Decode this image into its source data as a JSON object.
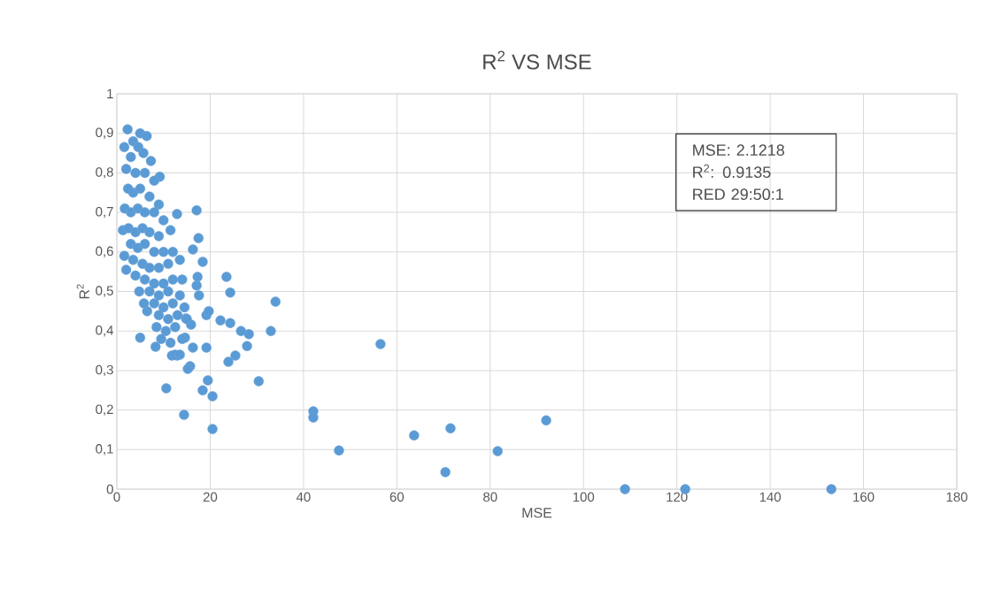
{
  "chart_data": {
    "type": "scatter",
    "title": "R$^{2}$ VS MSE",
    "xlabel": "MSE",
    "ylabel": "R$^{2}$",
    "annotations": [
      "MSE: 2.1218",
      "R$^{2}$:     0.9135",
      "RED   29:50:1"
    ],
    "series": [
      {
        "color": "#5b9bd5",
        "x": [
          153.1,
          121.8,
          108.9,
          92.0,
          81.6,
          71.5,
          70.4,
          63.7,
          47.6,
          42.1,
          42.1,
          56.5,
          34.0,
          33.0,
          30.4,
          28.3,
          27.9,
          26.6,
          25.4,
          23.9,
          24.3,
          24.3,
          23.5,
          22.2,
          20.5,
          20.5,
          19.5,
          19.2,
          19.2,
          19.7,
          18.4,
          14.4,
          10.6,
          15.7,
          15.2,
          16.3,
          18.4,
          17.3,
          17.1,
          17.6,
          17.5,
          17.1,
          16.3,
          15.9,
          14.8,
          14.6,
          12.9,
          11.8,
          12.9,
          5.0,
          8.3,
          2.3,
          5.0,
          6.4,
          3.5,
          1.6,
          4.6,
          3.0,
          5.7,
          7.3,
          9.2,
          2.0,
          4.0,
          6.0,
          8.0,
          2.4,
          3.5,
          5.0,
          7.0,
          9.0,
          1.7,
          3.0,
          4.5,
          6.0,
          8.0,
          10.0,
          1.3,
          2.5,
          4.0,
          5.5,
          7.0,
          9.0,
          11.5,
          3.0,
          4.5,
          6.0,
          8.0,
          10.0,
          12.0,
          1.6,
          3.5,
          5.5,
          7.0,
          9.0,
          11.0,
          13.5,
          2.0,
          4.0,
          6.0,
          8.0,
          10.0,
          12.0,
          14.0,
          4.8,
          7.0,
          9.0,
          11.0,
          13.5,
          5.8,
          8.0,
          10.0,
          12.0,
          14.5,
          6.5,
          9.0,
          11.0,
          13.0,
          15.0,
          8.5,
          10.5,
          12.5,
          9.5,
          11.5,
          14.0,
          12.5,
          13.5
        ],
        "values": [
          0.0,
          0.0,
          0.0,
          0.174,
          0.096,
          0.154,
          0.043,
          0.136,
          0.098,
          0.197,
          0.181,
          0.367,
          0.474,
          0.4,
          0.273,
          0.392,
          0.362,
          0.4,
          0.338,
          0.322,
          0.42,
          0.497,
          0.537,
          0.427,
          0.152,
          0.235,
          0.275,
          0.358,
          0.44,
          0.45,
          0.25,
          0.188,
          0.255,
          0.311,
          0.304,
          0.358,
          0.575,
          0.537,
          0.515,
          0.49,
          0.635,
          0.705,
          0.606,
          0.416,
          0.432,
          0.383,
          0.338,
          0.338,
          0.696,
          0.383,
          0.36,
          0.91,
          0.9,
          0.893,
          0.88,
          0.865,
          0.865,
          0.84,
          0.85,
          0.83,
          0.79,
          0.81,
          0.8,
          0.8,
          0.78,
          0.76,
          0.75,
          0.76,
          0.74,
          0.72,
          0.71,
          0.7,
          0.71,
          0.7,
          0.7,
          0.68,
          0.655,
          0.66,
          0.65,
          0.66,
          0.65,
          0.64,
          0.655,
          0.62,
          0.61,
          0.62,
          0.6,
          0.6,
          0.6,
          0.59,
          0.58,
          0.57,
          0.56,
          0.56,
          0.57,
          0.58,
          0.555,
          0.54,
          0.53,
          0.52,
          0.52,
          0.53,
          0.53,
          0.5,
          0.5,
          0.49,
          0.5,
          0.49,
          0.47,
          0.47,
          0.46,
          0.47,
          0.46,
          0.45,
          0.44,
          0.43,
          0.44,
          0.43,
          0.41,
          0.4,
          0.41,
          0.38,
          0.37,
          0.38,
          0.34,
          0.34
        ]
      }
    ],
    "xlim": [
      0,
      180
    ],
    "xticks": [
      0,
      20,
      40,
      60,
      80,
      100,
      120,
      140,
      160,
      180
    ],
    "ylim": [
      0,
      1
    ],
    "yticks": [
      0,
      {
        "value": 0.1,
        "label": "0,1"
      },
      {
        "value": 0.2,
        "label": "0,2"
      },
      {
        "value": 0.3,
        "label": "0,3"
      },
      {
        "value": 0.4,
        "label": "0,4"
      },
      {
        "value": 0.5,
        "label": "0,5"
      },
      {
        "value": 0.6,
        "label": "0,6"
      },
      {
        "value": 0.7,
        "label": "0,7"
      },
      {
        "value": 0.8,
        "label": "0,8"
      },
      {
        "value": 0.9,
        "label": "0,9"
      },
      1
    ],
    "grid": true,
    "marker": "circle"
  }
}
